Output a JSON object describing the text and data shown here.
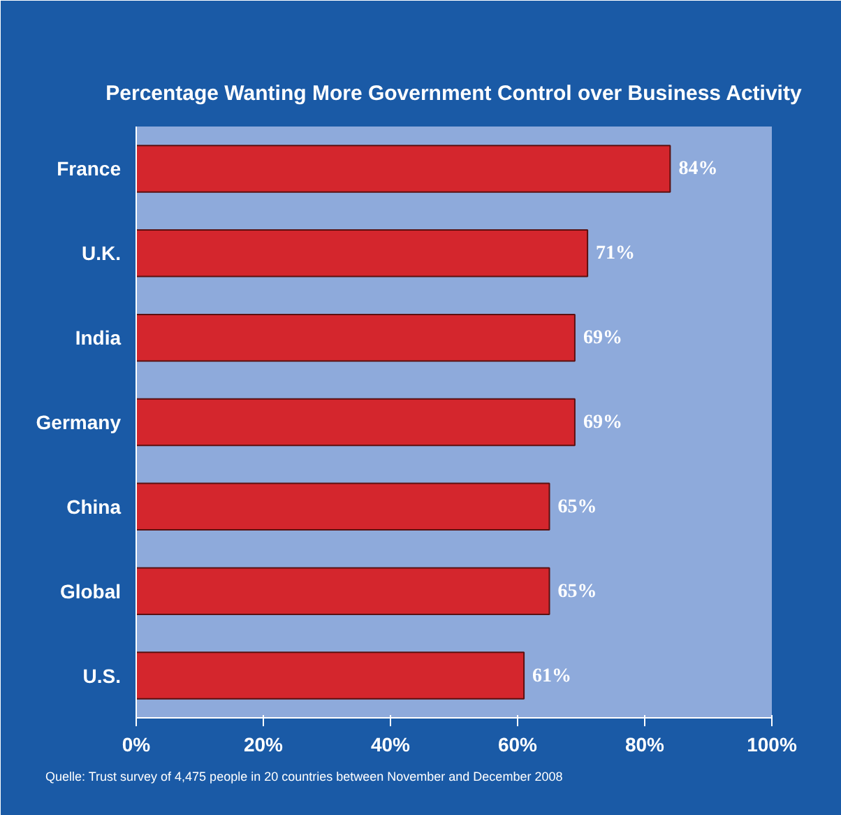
{
  "chart_data": {
    "type": "bar",
    "orientation": "horizontal",
    "title": "Percentage Wanting More Government Control over Business Activity",
    "categories": [
      "France",
      "U.K.",
      "India",
      "Germany",
      "China",
      "Global",
      "U.S."
    ],
    "values": [
      84,
      71,
      69,
      69,
      65,
      65,
      61
    ],
    "value_labels": [
      "84%",
      "71%",
      "69%",
      "69%",
      "65%",
      "65%",
      "61%"
    ],
    "color": "#d4262d",
    "xlim": [
      0,
      100
    ],
    "xticks": [
      {
        "value": 0,
        "label": "0%"
      },
      {
        "value": 20,
        "label": "20%"
      },
      {
        "value": 40,
        "label": "40%"
      },
      {
        "value": 60,
        "label": "60%"
      },
      {
        "value": 80,
        "label": "80%"
      },
      {
        "value": 100,
        "label": "100%"
      }
    ],
    "grid": false,
    "annotations": [
      "Quelle: Trust survey of 4,475 people in 20 countries between November and December 2008"
    ]
  }
}
